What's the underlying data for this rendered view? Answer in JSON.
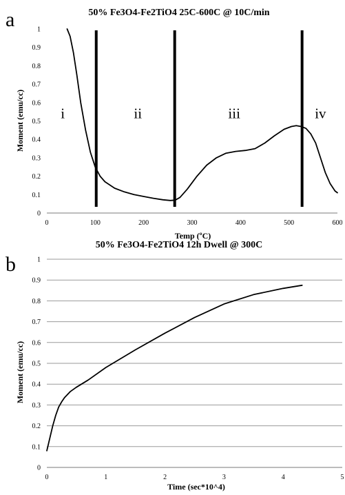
{
  "chart_data": [
    {
      "panel_label": "a",
      "type": "line",
      "title": "50% Fe3O4-Fe2TiO4 25C-600C @ 10C/min",
      "xlabel": "Temp (ºC)",
      "ylabel": "Moment (emu/cc)",
      "xlim": [
        0,
        600
      ],
      "ylim": [
        0,
        1
      ],
      "xticks": [
        "0",
        "100",
        "200",
        "300",
        "400",
        "500",
        "600"
      ],
      "yticks": [
        "0",
        "0.1",
        "0.2",
        "0.3",
        "0.4",
        "0.5",
        "0.6",
        "0.7",
        "0.8",
        "0.9",
        "1"
      ],
      "grid": false,
      "series": [
        {
          "x": [
            42,
            48,
            55,
            62,
            70,
            80,
            90,
            100,
            110,
            120,
            140,
            160,
            180,
            200,
            220,
            240,
            255,
            265,
            275,
            290,
            310,
            330,
            350,
            370,
            390,
            410,
            430,
            450,
            470,
            490,
            505,
            515,
            525,
            535,
            545,
            555,
            565,
            575,
            585,
            595,
            600
          ],
          "y": [
            1.0,
            0.96,
            0.87,
            0.75,
            0.6,
            0.45,
            0.33,
            0.25,
            0.2,
            0.17,
            0.135,
            0.115,
            0.1,
            0.09,
            0.08,
            0.072,
            0.068,
            0.07,
            0.085,
            0.13,
            0.2,
            0.26,
            0.3,
            0.325,
            0.335,
            0.34,
            0.35,
            0.38,
            0.42,
            0.455,
            0.47,
            0.475,
            0.47,
            0.46,
            0.43,
            0.38,
            0.3,
            0.22,
            0.16,
            0.12,
            0.11
          ]
        }
      ],
      "vertical_lines": [
        102,
        264,
        527
      ],
      "regions": [
        {
          "label": "i",
          "x": 33,
          "y": 0.5
        },
        {
          "label": "ii",
          "x": 188,
          "y": 0.5
        },
        {
          "label": "iii",
          "x": 387,
          "y": 0.5
        },
        {
          "label": "iv",
          "x": 565,
          "y": 0.5
        }
      ]
    },
    {
      "panel_label": "b",
      "type": "line",
      "title": "50% Fe3O4-Fe2TiO4 12h Dwell @ 300C",
      "xlabel": "Time (sec*10^4)",
      "ylabel": "Moment (emu/cc)",
      "xlim": [
        0,
        5
      ],
      "ylim": [
        0,
        1
      ],
      "xticks": [
        "0",
        "1",
        "2",
        "3",
        "4",
        "5"
      ],
      "yticks": [
        "0",
        "0.1",
        "0.2",
        "0.3",
        "0.4",
        "0.5",
        "0.6",
        "0.7",
        "0.8",
        "0.9",
        "1"
      ],
      "grid": true,
      "series": [
        {
          "x": [
            0,
            0.05,
            0.1,
            0.15,
            0.2,
            0.25,
            0.3,
            0.4,
            0.5,
            0.7,
            1.0,
            1.5,
            2.0,
            2.5,
            3.0,
            3.5,
            4.0,
            4.32
          ],
          "y": [
            0.08,
            0.14,
            0.2,
            0.25,
            0.29,
            0.315,
            0.335,
            0.365,
            0.385,
            0.42,
            0.48,
            0.565,
            0.645,
            0.72,
            0.785,
            0.83,
            0.86,
            0.875
          ]
        }
      ]
    }
  ]
}
